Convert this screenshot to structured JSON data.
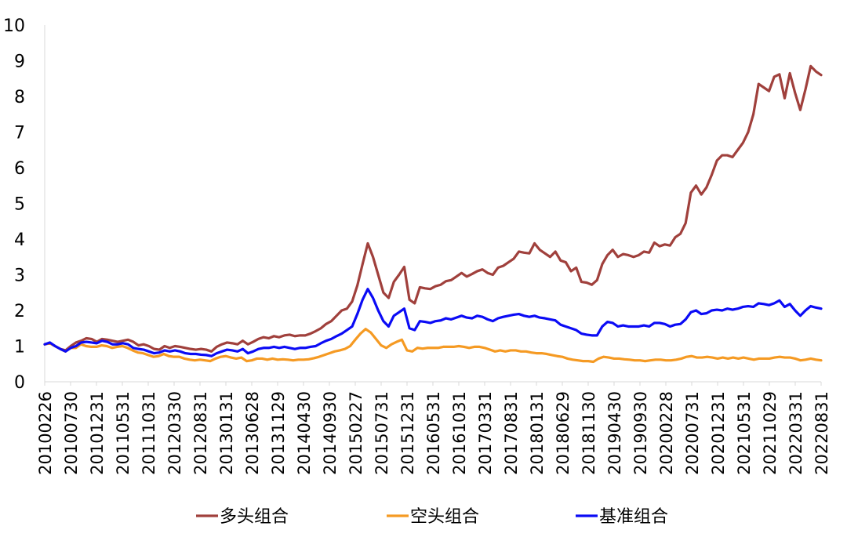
{
  "chart_data": {
    "type": "line",
    "title": "",
    "xlabel": "",
    "ylabel": "",
    "ylim": [
      0,
      10
    ],
    "y_ticks": [
      "0",
      "1",
      "2",
      "3",
      "4",
      "5",
      "6",
      "7",
      "8",
      "9",
      "10"
    ],
    "grid": false,
    "legend_position": "bottom",
    "x_tick_labels": [
      "20100226",
      "20100730",
      "20101231",
      "20110531",
      "20111031",
      "20120330",
      "20120831",
      "20130131",
      "20130628",
      "20131129",
      "20140430",
      "20140930",
      "20150227",
      "20150731",
      "20151231",
      "20160531",
      "20161031",
      "20170331",
      "20170831",
      "20180131",
      "20180629",
      "20181130",
      "20190430",
      "20190930",
      "20200228",
      "20200731",
      "20201231",
      "20210531",
      "20211029",
      "20220331",
      "20220831"
    ],
    "series": [
      {
        "name": "多头组合",
        "color": "#A0403C",
        "values": [
          1.05,
          1.08,
          1.0,
          0.92,
          0.88,
          1.0,
          1.1,
          1.15,
          1.22,
          1.2,
          1.12,
          1.2,
          1.18,
          1.15,
          1.12,
          1.15,
          1.18,
          1.12,
          1.02,
          1.05,
          1.0,
          0.92,
          0.9,
          1.0,
          0.95,
          1.0,
          0.98,
          0.95,
          0.92,
          0.9,
          0.92,
          0.9,
          0.85,
          0.98,
          1.05,
          1.1,
          1.08,
          1.05,
          1.15,
          1.05,
          1.12,
          1.2,
          1.25,
          1.22,
          1.28,
          1.25,
          1.3,
          1.32,
          1.28,
          1.3,
          1.3,
          1.35,
          1.42,
          1.5,
          1.62,
          1.7,
          1.85,
          2.0,
          2.05,
          2.25,
          2.7,
          3.3,
          3.88,
          3.5,
          3.0,
          2.5,
          2.35,
          2.8,
          3.0,
          3.22,
          2.3,
          2.2,
          2.65,
          2.62,
          2.6,
          2.68,
          2.72,
          2.82,
          2.85,
          2.95,
          3.05,
          2.95,
          3.02,
          3.1,
          3.15,
          3.05,
          3.0,
          3.2,
          3.25,
          3.35,
          3.45,
          3.65,
          3.62,
          3.6,
          3.88,
          3.7,
          3.6,
          3.5,
          3.65,
          3.4,
          3.35,
          3.1,
          3.2,
          2.8,
          2.78,
          2.72,
          2.85,
          3.3,
          3.55,
          3.7,
          3.5,
          3.58,
          3.55,
          3.5,
          3.55,
          3.65,
          3.62,
          3.9,
          3.8,
          3.85,
          3.82,
          4.05,
          4.15,
          4.45,
          5.3,
          5.5,
          5.25,
          5.45,
          5.8,
          6.2,
          6.35,
          6.35,
          6.3,
          6.5,
          6.7,
          7.0,
          7.5,
          8.35,
          8.25,
          8.15,
          8.55,
          8.62,
          7.95,
          8.65,
          8.1,
          7.62,
          8.2,
          8.85,
          8.7,
          8.6
        ]
      },
      {
        "name": "空头组合",
        "color": "#F59A23",
        "values": [
          1.05,
          1.08,
          1.0,
          0.92,
          0.85,
          0.95,
          0.95,
          1.05,
          1.0,
          0.98,
          0.98,
          1.02,
          1.0,
          0.95,
          0.98,
          1.0,
          0.95,
          0.88,
          0.82,
          0.8,
          0.75,
          0.7,
          0.72,
          0.78,
          0.72,
          0.7,
          0.7,
          0.65,
          0.62,
          0.6,
          0.62,
          0.6,
          0.58,
          0.65,
          0.7,
          0.72,
          0.68,
          0.65,
          0.68,
          0.58,
          0.6,
          0.65,
          0.65,
          0.62,
          0.65,
          0.62,
          0.63,
          0.62,
          0.6,
          0.62,
          0.62,
          0.63,
          0.66,
          0.7,
          0.75,
          0.8,
          0.85,
          0.88,
          0.92,
          1.0,
          1.18,
          1.35,
          1.48,
          1.38,
          1.2,
          1.02,
          0.95,
          1.05,
          1.12,
          1.18,
          0.88,
          0.85,
          0.95,
          0.93,
          0.95,
          0.95,
          0.95,
          0.98,
          0.98,
          0.98,
          1.0,
          0.98,
          0.95,
          0.98,
          0.98,
          0.95,
          0.9,
          0.85,
          0.88,
          0.85,
          0.88,
          0.88,
          0.85,
          0.85,
          0.82,
          0.8,
          0.8,
          0.78,
          0.75,
          0.72,
          0.7,
          0.65,
          0.62,
          0.6,
          0.58,
          0.58,
          0.56,
          0.65,
          0.7,
          0.68,
          0.65,
          0.65,
          0.63,
          0.62,
          0.6,
          0.6,
          0.58,
          0.6,
          0.62,
          0.62,
          0.6,
          0.6,
          0.62,
          0.65,
          0.7,
          0.72,
          0.68,
          0.68,
          0.7,
          0.68,
          0.65,
          0.68,
          0.65,
          0.68,
          0.65,
          0.68,
          0.65,
          0.62,
          0.65,
          0.65,
          0.65,
          0.68,
          0.7,
          0.68,
          0.68,
          0.65,
          0.6,
          0.62,
          0.65,
          0.62,
          0.6
        ]
      },
      {
        "name": "基准组合",
        "color": "#0B0BF5",
        "values": [
          1.05,
          1.1,
          1.0,
          0.92,
          0.85,
          0.95,
          1.0,
          1.1,
          1.12,
          1.1,
          1.08,
          1.15,
          1.12,
          1.05,
          1.05,
          1.08,
          1.05,
          0.95,
          0.92,
          0.9,
          0.85,
          0.8,
          0.82,
          0.88,
          0.85,
          0.88,
          0.85,
          0.8,
          0.78,
          0.78,
          0.76,
          0.75,
          0.72,
          0.8,
          0.85,
          0.9,
          0.88,
          0.85,
          0.92,
          0.8,
          0.85,
          0.92,
          0.95,
          0.95,
          0.98,
          0.95,
          0.98,
          0.95,
          0.92,
          0.95,
          0.95,
          0.98,
          1.0,
          1.08,
          1.15,
          1.2,
          1.28,
          1.35,
          1.45,
          1.55,
          1.9,
          2.3,
          2.6,
          2.35,
          2.0,
          1.7,
          1.55,
          1.85,
          1.95,
          2.05,
          1.5,
          1.45,
          1.7,
          1.68,
          1.65,
          1.7,
          1.72,
          1.78,
          1.75,
          1.8,
          1.85,
          1.8,
          1.78,
          1.85,
          1.82,
          1.75,
          1.7,
          1.78,
          1.82,
          1.85,
          1.88,
          1.9,
          1.85,
          1.82,
          1.85,
          1.8,
          1.78,
          1.75,
          1.72,
          1.6,
          1.55,
          1.5,
          1.45,
          1.35,
          1.32,
          1.3,
          1.3,
          1.55,
          1.68,
          1.65,
          1.55,
          1.58,
          1.55,
          1.55,
          1.55,
          1.58,
          1.55,
          1.65,
          1.65,
          1.62,
          1.55,
          1.6,
          1.62,
          1.75,
          1.95,
          2.0,
          1.9,
          1.92,
          2.0,
          2.02,
          2.0,
          2.05,
          2.02,
          2.05,
          2.1,
          2.12,
          2.1,
          2.2,
          2.18,
          2.15,
          2.2,
          2.28,
          2.1,
          2.18,
          2.0,
          1.85,
          2.0,
          2.12,
          2.08,
          2.05
        ]
      }
    ]
  }
}
